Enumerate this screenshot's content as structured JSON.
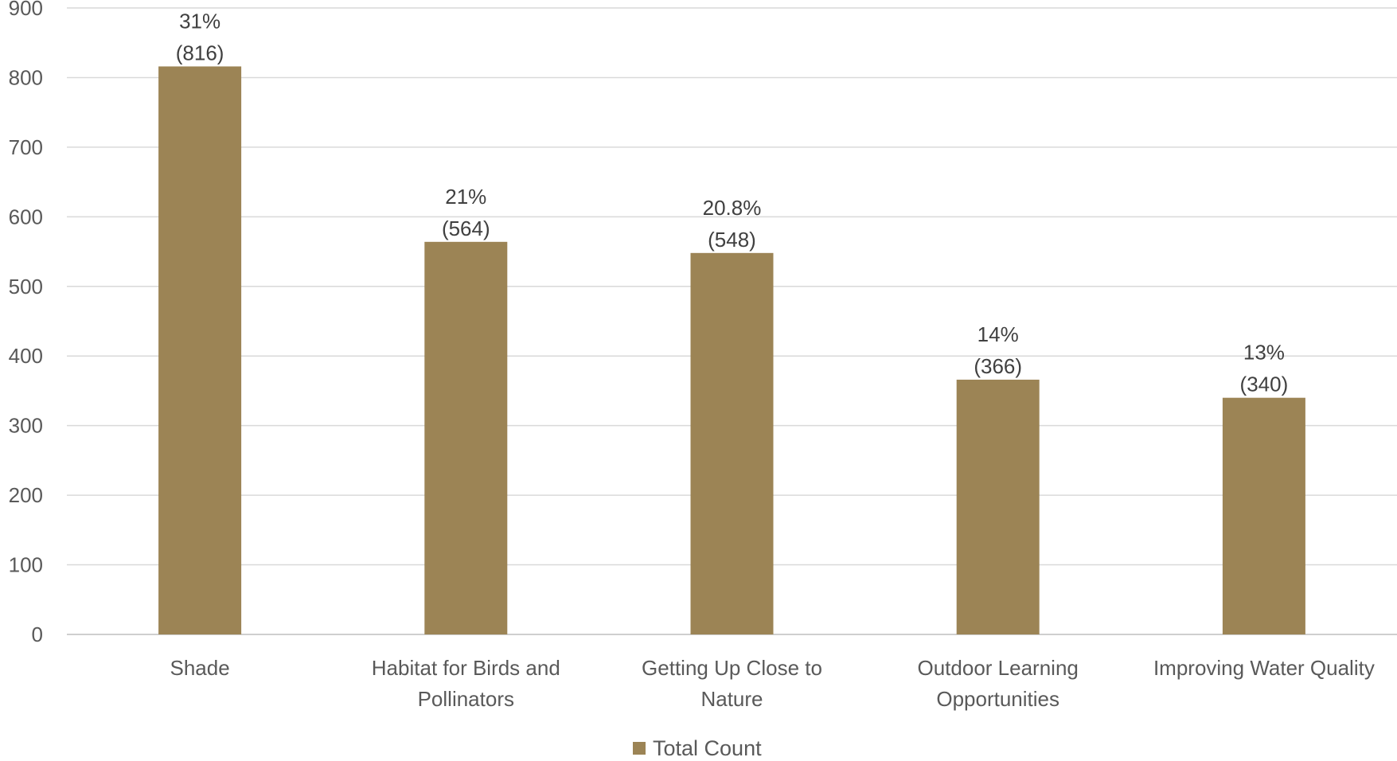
{
  "chart_data": {
    "type": "bar",
    "categories": [
      [
        "Shade"
      ],
      [
        "Habitat for Birds and",
        "Pollinators"
      ],
      [
        "Getting Up Close to",
        "Nature"
      ],
      [
        "Outdoor Learning",
        "Opportunities"
      ],
      [
        "Improving Water Quality"
      ]
    ],
    "series": [
      {
        "name": "Total Count",
        "values": [
          816,
          564,
          548,
          366,
          340
        ],
        "percent_labels": [
          "31%",
          "21%",
          "20.8%",
          "14%",
          "13%"
        ],
        "count_labels": [
          "(816)",
          "(564)",
          "(548)",
          "(366)",
          "(340)"
        ],
        "color": "#9c8455"
      }
    ],
    "ylim": [
      0,
      900
    ],
    "yticks": [
      0,
      100,
      200,
      300,
      400,
      500,
      600,
      700,
      800,
      900
    ],
    "grid": true,
    "legend_position": "bottom",
    "title": "",
    "xlabel": "",
    "ylabel": ""
  },
  "legend": {
    "label": "Total Count"
  }
}
